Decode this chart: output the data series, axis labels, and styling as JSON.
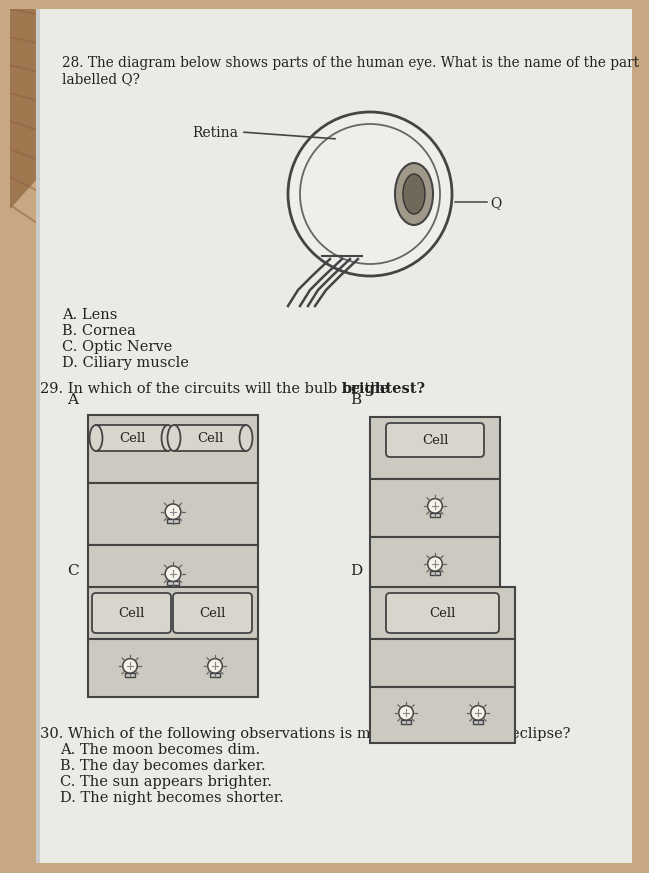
{
  "bg_color_top": "#b8936a",
  "bg_color": "#c8a882",
  "paper_color": "#e8e6e0",
  "q28_line1": "28. The diagram below shows parts of the human eye. What is the name of the part",
  "q28_line2": "labelled Q?",
  "q28_options": [
    "A. Lens",
    "B. Cornea",
    "C. Optic Nerve",
    "D. Ciliary muscle"
  ],
  "retina_label": "Retina",
  "q_label": "Q",
  "q29_text_pre": "29. In which of the circuits will the bulb be the ",
  "q29_text_bold": "brightest?",
  "q30_text": "30. Which of the following observations is made during a solar eclipse?",
  "q30_options": [
    "A. The moon becomes dim.",
    "B. The day becomes darker.",
    "C. The sun appears brighter.",
    "D. The night becomes shorter."
  ],
  "text_color": "#222222",
  "line_color": "#444444",
  "cell_fill": "#d8d5cc",
  "circuit_fill": "#ccc9c0",
  "bulb_color": "#555555"
}
